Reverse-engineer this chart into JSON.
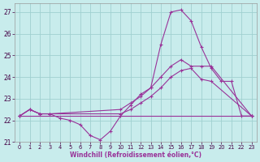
{
  "xlabel": "Windchill (Refroidissement éolien,°C)",
  "bg_color": "#c8ecec",
  "grid_color": "#a0d0d0",
  "line_color": "#993399",
  "xlim": [
    -0.5,
    23.5
  ],
  "ylim": [
    21,
    27.4
  ],
  "yticks": [
    21,
    22,
    23,
    24,
    25,
    26,
    27
  ],
  "xticks": [
    0,
    1,
    2,
    3,
    4,
    5,
    6,
    7,
    8,
    9,
    10,
    11,
    12,
    13,
    14,
    15,
    16,
    17,
    18,
    19,
    20,
    21,
    22,
    23
  ],
  "series": [
    {
      "x": [
        0,
        1,
        2,
        3,
        4,
        5,
        6,
        7,
        8,
        9,
        10,
        11,
        12,
        13,
        14,
        15,
        16,
        17,
        18,
        19,
        20,
        21,
        22,
        23
      ],
      "y": [
        22.2,
        22.5,
        22.3,
        22.3,
        22.1,
        22.0,
        21.8,
        21.3,
        21.1,
        21.5,
        22.2,
        22.7,
        23.2,
        23.5,
        25.5,
        27.0,
        27.1,
        26.6,
        25.4,
        24.4,
        23.8,
        23.8,
        22.2,
        22.2
      ]
    },
    {
      "x": [
        0,
        1,
        2,
        3,
        10,
        11,
        12,
        13,
        14,
        15,
        16,
        17,
        18,
        19,
        23
      ],
      "y": [
        22.2,
        22.5,
        22.3,
        22.3,
        22.5,
        22.8,
        23.1,
        23.5,
        24.0,
        24.5,
        24.8,
        24.5,
        24.5,
        24.5,
        22.2
      ]
    },
    {
      "x": [
        0,
        1,
        2,
        3,
        10,
        11,
        12,
        13,
        14,
        15,
        16,
        17,
        18,
        19,
        23
      ],
      "y": [
        22.2,
        22.5,
        22.3,
        22.3,
        22.3,
        22.5,
        22.8,
        23.1,
        23.5,
        24.0,
        24.3,
        24.4,
        23.9,
        23.8,
        22.2
      ]
    },
    {
      "x": [
        0,
        23
      ],
      "y": [
        22.2,
        22.2
      ]
    }
  ]
}
